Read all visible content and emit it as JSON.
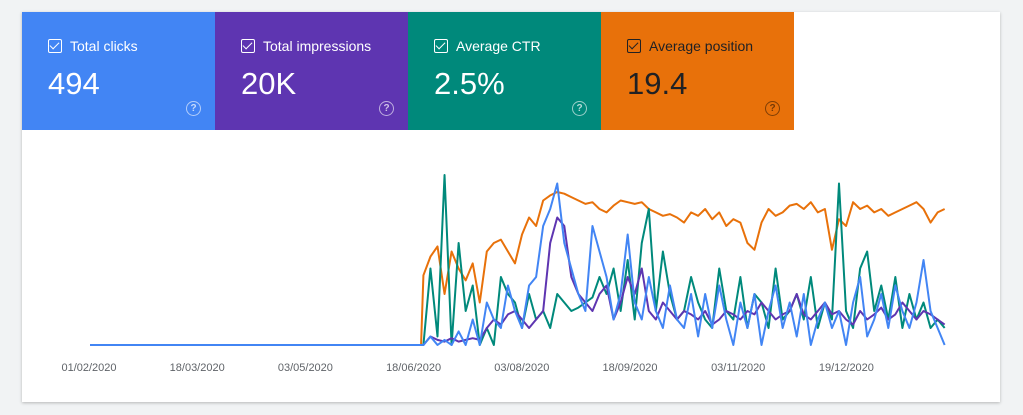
{
  "metrics": [
    {
      "label": "Total clicks",
      "value": "494",
      "color": "#4285f4",
      "checked": true
    },
    {
      "label": "Total impressions",
      "value": "20K",
      "color": "#5e35b1",
      "checked": true
    },
    {
      "label": "Average CTR",
      "value": "2.5%",
      "color": "#00897b",
      "checked": true
    },
    {
      "label": "Average position",
      "value": "19.4",
      "color": "#e8710a",
      "checked": true
    }
  ],
  "help_icon": "?",
  "chart_data": {
    "type": "line",
    "x_tick_labels": [
      "01/02/2020",
      "18/03/2020",
      "03/05/2020",
      "18/06/2020",
      "03/08/2020",
      "18/09/2020",
      "03/11/2020",
      "19/12/2020"
    ],
    "x_range_days": [
      0,
      365
    ],
    "data_start_day": 142,
    "step_days": 3,
    "ylim": [
      0,
      100
    ],
    "y_units": "normalized per series",
    "grid": false,
    "series": [
      {
        "name": "Average position",
        "color": "#e8710a",
        "values": [
          41,
          52,
          58,
          30,
          55,
          45,
          38,
          48,
          25,
          55,
          60,
          62,
          55,
          48,
          65,
          75,
          70,
          85,
          88,
          90,
          89,
          87,
          85,
          83,
          84,
          80,
          78,
          82,
          85,
          84,
          83,
          84,
          80,
          78,
          76,
          77,
          75,
          72,
          78,
          76,
          80,
          74,
          78,
          70,
          74,
          72,
          60,
          56,
          72,
          80,
          76,
          78,
          82,
          83,
          80,
          84,
          78,
          80,
          56,
          74,
          70,
          84,
          80,
          82,
          78,
          80,
          76,
          78,
          80,
          82,
          84,
          80,
          72,
          78,
          80
        ]
      },
      {
        "name": "Average CTR",
        "color": "#00897b",
        "values": [
          0,
          45,
          5,
          100,
          0,
          60,
          20,
          35,
          0,
          10,
          0,
          40,
          30,
          25,
          10,
          30,
          15,
          20,
          10,
          30,
          25,
          20,
          22,
          25,
          28,
          40,
          30,
          45,
          20,
          50,
          15,
          60,
          80,
          20,
          55,
          30,
          15,
          20,
          40,
          25,
          15,
          10,
          45,
          20,
          15,
          40,
          10,
          30,
          25,
          10,
          45,
          15,
          20,
          30,
          15,
          40,
          10,
          25,
          15,
          95,
          20,
          10,
          45,
          55,
          20,
          35,
          15,
          40,
          10,
          30,
          15,
          25,
          10,
          15,
          10
        ]
      },
      {
        "name": "Total impressions",
        "color": "#5e35b1",
        "values": [
          0,
          5,
          3,
          2,
          4,
          2,
          3,
          4,
          3,
          10,
          15,
          12,
          18,
          20,
          15,
          10,
          15,
          20,
          60,
          75,
          70,
          40,
          30,
          25,
          20,
          30,
          35,
          15,
          25,
          40,
          30,
          45,
          20,
          15,
          25,
          20,
          15,
          20,
          18,
          15,
          20,
          12,
          15,
          20,
          18,
          15,
          20,
          18,
          25,
          20,
          15,
          18,
          20,
          30,
          18,
          15,
          20,
          25,
          18,
          20,
          15,
          12,
          20,
          15,
          18,
          22,
          15,
          18,
          25,
          20,
          15,
          20,
          18,
          15,
          12
        ]
      },
      {
        "name": "Total clicks",
        "color": "#4285f4",
        "values": [
          0,
          5,
          0,
          3,
          0,
          8,
          0,
          15,
          0,
          25,
          15,
          10,
          35,
          20,
          10,
          35,
          40,
          70,
          80,
          95,
          60,
          45,
          30,
          20,
          70,
          55,
          40,
          15,
          30,
          65,
          25,
          15,
          40,
          20,
          10,
          35,
          15,
          10,
          30,
          5,
          30,
          10,
          35,
          15,
          0,
          25,
          10,
          30,
          0,
          20,
          35,
          10,
          25,
          5,
          30,
          0,
          15,
          25,
          10,
          20,
          0,
          25,
          40,
          5,
          15,
          30,
          10,
          35,
          20,
          10,
          25,
          50,
          20,
          10,
          0
        ]
      }
    ]
  }
}
